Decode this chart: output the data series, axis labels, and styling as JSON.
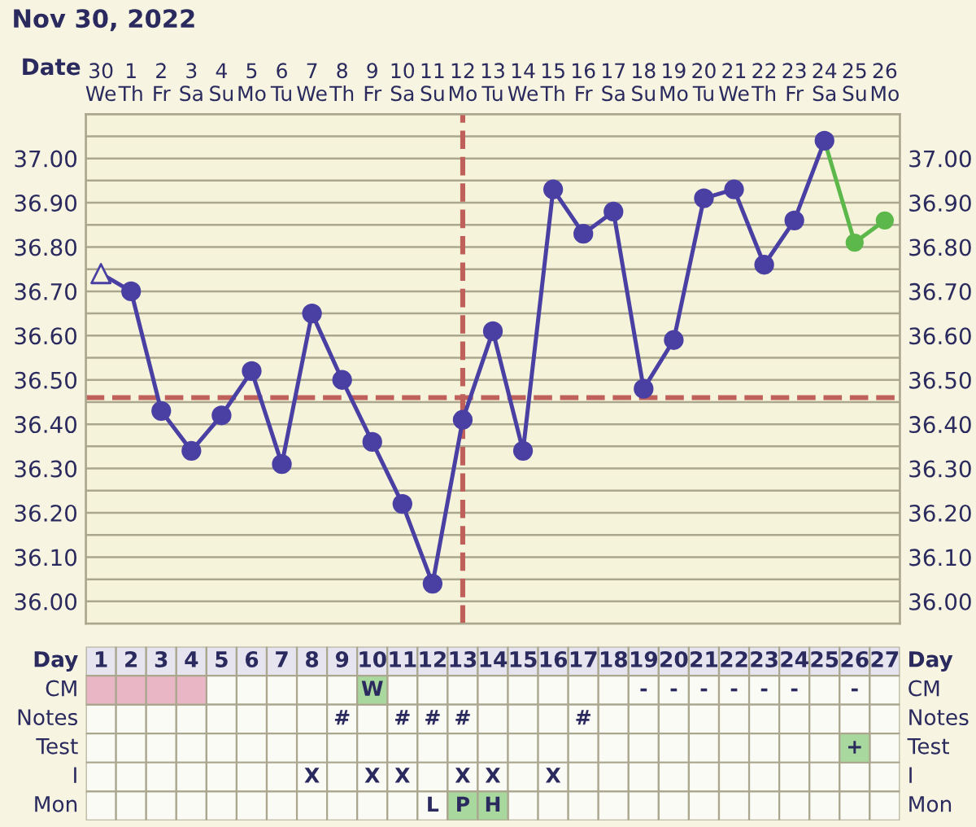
{
  "chart_data": [
    {
      "type": "line",
      "title": "Nov 30, 2022",
      "xlabel": "Date",
      "categories": [
        "30\nWe",
        "1\nTh",
        "2\nFr",
        "3\nSa",
        "4\nSu",
        "5\nMo",
        "6\nTu",
        "7\nWe",
        "8\nTh",
        "9\nFr",
        "10\nSa",
        "11\nSu",
        "12\nMo",
        "13\nTu",
        "14\nWe",
        "15\nTh",
        "16\nFr",
        "17\nSa",
        "18\nSu",
        "19\nMo",
        "20\nTu",
        "21\nWe",
        "22\nTh",
        "23\nFr",
        "24\nSa",
        "25\nSu",
        "26\nMo"
      ],
      "ylim": [
        35.95,
        37.1
      ],
      "yticks": [
        {
          "value": 36.0,
          "label": "36.00"
        },
        {
          "value": 36.1,
          "label": "36.10"
        },
        {
          "value": 36.2,
          "label": "36.20"
        },
        {
          "value": 36.3,
          "label": "36.30"
        },
        {
          "value": 36.4,
          "label": "36.40"
        },
        {
          "value": 36.5,
          "label": "36.50"
        },
        {
          "value": 36.6,
          "label": "36.60"
        },
        {
          "value": 36.7,
          "label": "36.70"
        },
        {
          "value": 36.8,
          "label": "36.80"
        },
        {
          "value": 36.9,
          "label": "36.90"
        },
        {
          "value": 37.0,
          "label": "37.00"
        }
      ],
      "y2lim": [
        35.95,
        37.1
      ],
      "y2ticks": [
        {
          "value": 36.0,
          "label": "36.00"
        },
        {
          "value": 36.1,
          "label": "36.10"
        },
        {
          "value": 36.2,
          "label": "36.20"
        },
        {
          "value": 36.3,
          "label": "36.30"
        },
        {
          "value": 36.4,
          "label": "36.40"
        },
        {
          "value": 36.5,
          "label": "36.50"
        },
        {
          "value": 36.6,
          "label": "36.60"
        },
        {
          "value": 36.7,
          "label": "36.70"
        },
        {
          "value": 36.8,
          "label": "36.80"
        },
        {
          "value": 36.9,
          "label": "36.90"
        },
        {
          "value": 37.0,
          "label": "37.00"
        }
      ],
      "grid": true,
      "series": [
        {
          "color": "#4a3fa3",
          "marker": "none",
          "values": [
            36.74,
            36.7,
            36.43,
            36.34,
            36.42,
            36.52,
            36.31,
            36.65,
            36.5,
            36.36,
            36.22,
            36.04,
            36.41,
            36.61,
            36.34,
            36.93,
            36.83,
            36.88,
            36.48,
            36.59,
            36.91,
            36.93,
            36.76,
            36.86,
            37.04,
            null,
            null
          ]
        },
        {
          "type": "scatter",
          "color": "#4a3fa3",
          "marker": "triangle",
          "values": [
            36.74,
            null,
            null,
            null,
            null,
            null,
            null,
            null,
            null,
            null,
            null,
            null,
            null,
            null,
            null,
            null,
            null,
            null,
            null,
            null,
            null,
            null,
            null,
            null,
            null,
            null,
            null
          ]
        },
        {
          "type": "scatter",
          "color": "#4a3fa3",
          "marker": "circle",
          "values": [
            null,
            36.7,
            36.43,
            36.34,
            36.42,
            36.52,
            36.31,
            36.65,
            36.5,
            36.36,
            36.22,
            36.04,
            36.41,
            36.61,
            36.34,
            36.93,
            36.83,
            36.88,
            36.48,
            36.59,
            36.91,
            36.93,
            36.76,
            36.86,
            37.04,
            null,
            null
          ]
        },
        {
          "color": "#5db84b",
          "marker": "circle",
          "values": [
            null,
            null,
            null,
            null,
            null,
            null,
            null,
            null,
            null,
            null,
            null,
            null,
            null,
            null,
            null,
            null,
            null,
            null,
            null,
            null,
            null,
            null,
            null,
            null,
            37.04,
            36.81,
            36.86
          ]
        }
      ],
      "ref_lines": [
        {
          "axis": "y",
          "value": 36.46,
          "color": "#c0605a",
          "line_style": "dashed"
        },
        {
          "axis": "x",
          "value": "12\nMo",
          "color": "#c0605a",
          "line_style": "dashed"
        }
      ]
    },
    {
      "type": "heatmap",
      "xlabel": "Day",
      "categories": [
        "1",
        "2",
        "3",
        "4",
        "5",
        "6",
        "7",
        "8",
        "9",
        "10",
        "11",
        "12",
        "13",
        "14",
        "15",
        "16",
        "17",
        "18",
        "19",
        "20",
        "21",
        "22",
        "23",
        "24",
        "25",
        "26",
        "27"
      ],
      "y_categories": [
        "CM",
        "Notes",
        "Test",
        "I",
        "Mon"
      ],
      "y2_categories": [
        "CM",
        "Notes",
        "Test",
        "I",
        "Mon"
      ],
      "cells": [
        [
          null,
          null,
          null,
          null,
          null,
          null,
          null,
          null,
          null,
          null,
          null,
          null,
          null,
          null,
          null,
          null,
          null,
          null,
          null,
          null,
          null,
          null,
          null,
          null,
          null,
          null,
          null
        ],
        [
          null,
          null,
          null,
          null,
          null,
          null,
          null,
          null,
          null,
          null,
          null,
          null,
          null,
          null,
          null,
          null,
          null,
          null,
          null,
          null,
          null,
          null,
          null,
          null,
          null,
          null,
          null
        ],
        [
          null,
          null,
          null,
          null,
          null,
          null,
          null,
          null,
          null,
          null,
          null,
          null,
          null,
          null,
          null,
          null,
          null,
          null,
          null,
          null,
          null,
          null,
          null,
          null,
          null,
          null,
          null
        ],
        [
          null,
          null,
          null,
          null,
          null,
          null,
          null,
          null,
          null,
          null,
          null,
          null,
          null,
          null,
          null,
          null,
          null,
          null,
          null,
          null,
          null,
          null,
          null,
          null,
          null,
          null,
          null
        ],
        [
          null,
          null,
          null,
          null,
          null,
          null,
          null,
          null,
          null,
          null,
          null,
          null,
          null,
          null,
          null,
          null,
          null,
          null,
          null,
          null,
          null,
          null,
          null,
          null,
          null,
          null,
          null
        ]
      ],
      "cell_labels": [
        [
          null,
          null,
          null,
          null,
          null,
          null,
          null,
          null,
          null,
          "W",
          null,
          null,
          null,
          null,
          null,
          null,
          null,
          null,
          "-",
          "-",
          "-",
          "-",
          "-",
          "-",
          null,
          "-",
          null
        ],
        [
          null,
          null,
          null,
          null,
          null,
          null,
          null,
          null,
          "#",
          null,
          "#",
          "#",
          "#",
          null,
          null,
          null,
          "#",
          null,
          null,
          null,
          null,
          null,
          null,
          null,
          null,
          null,
          null
        ],
        [
          null,
          null,
          null,
          null,
          null,
          null,
          null,
          null,
          null,
          null,
          null,
          null,
          null,
          null,
          null,
          null,
          null,
          null,
          null,
          null,
          null,
          null,
          null,
          null,
          null,
          "+",
          null
        ],
        [
          null,
          null,
          null,
          null,
          null,
          null,
          null,
          "X",
          null,
          "X",
          "X",
          null,
          "X",
          "X",
          null,
          "X",
          null,
          null,
          null,
          null,
          null,
          null,
          null,
          null,
          null,
          null,
          null
        ],
        [
          null,
          null,
          null,
          null,
          null,
          null,
          null,
          null,
          null,
          null,
          null,
          "L",
          "P",
          "H",
          null,
          null,
          null,
          null,
          null,
          null,
          null,
          null,
          null,
          null,
          null,
          null,
          null
        ]
      ],
      "colors": [
        [
          "#e9b6c6",
          "#e9b6c6",
          "#e9b6c6",
          "#e9b6c6",
          null,
          null,
          null,
          null,
          null,
          "#a8d89e",
          null,
          null,
          null,
          null,
          null,
          null,
          null,
          null,
          null,
          null,
          null,
          null,
          null,
          null,
          null,
          null,
          null
        ],
        [
          null,
          null,
          null,
          null,
          null,
          null,
          null,
          null,
          null,
          null,
          null,
          null,
          null,
          null,
          null,
          null,
          null,
          null,
          null,
          null,
          null,
          null,
          null,
          null,
          null,
          null,
          null
        ],
        [
          null,
          null,
          null,
          null,
          null,
          null,
          null,
          null,
          null,
          null,
          null,
          null,
          null,
          null,
          null,
          null,
          null,
          null,
          null,
          null,
          null,
          null,
          null,
          null,
          null,
          "#a8d89e",
          null
        ],
        [
          null,
          null,
          null,
          null,
          null,
          null,
          null,
          null,
          null,
          null,
          null,
          null,
          null,
          null,
          null,
          null,
          null,
          null,
          null,
          null,
          null,
          null,
          null,
          null,
          null,
          null,
          null
        ],
        [
          null,
          null,
          null,
          null,
          null,
          null,
          null,
          null,
          null,
          null,
          null,
          null,
          "#a8d89e",
          "#a8d89e",
          null,
          null,
          null,
          null,
          null,
          null,
          null,
          null,
          null,
          null,
          null,
          null,
          null
        ]
      ]
    }
  ]
}
